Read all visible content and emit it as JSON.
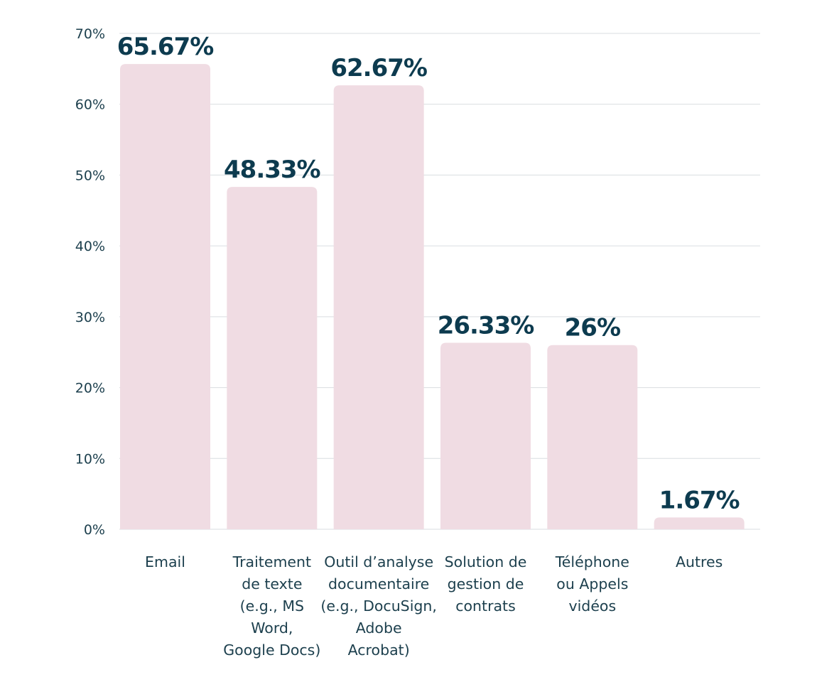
{
  "chart_data": {
    "type": "bar",
    "title": "",
    "xlabel": "",
    "ylabel": "",
    "ylim": [
      0,
      70
    ],
    "yticks": [
      0,
      10,
      20,
      30,
      40,
      50,
      60,
      70
    ],
    "ytick_labels": [
      "0%",
      "10%",
      "20%",
      "30%",
      "40%",
      "50%",
      "60%",
      "70%"
    ],
    "grid": true,
    "legend": "none",
    "categories": [
      "Email",
      "Traitement de texte (e.g., MS Word, Google Docs)",
      "Outil d’analyse documentaire (e.g., DocuSign, Adobe Acrobat)",
      "Solution de gestion de contrats",
      "Téléphone ou Appels vidéos",
      "Autres"
    ],
    "category_lines": [
      [
        "Email"
      ],
      [
        "Traitement",
        "de texte",
        "(e.g., MS",
        "Word,",
        "Google Docs)"
      ],
      [
        "Outil d’analyse",
        "documentaire",
        "(e.g., DocuSign,",
        "Adobe",
        "Acrobat)"
      ],
      [
        "Solution de",
        "gestion de",
        "contrats"
      ],
      [
        "Téléphone",
        "ou Appels",
        "vidéos"
      ],
      [
        "Autres"
      ]
    ],
    "values": [
      65.67,
      48.33,
      62.67,
      26.33,
      26,
      1.67
    ],
    "data_labels": [
      "65.67%",
      "48.33%",
      "62.67%",
      "26.33%",
      "26%",
      "1.67%"
    ],
    "colors": {
      "bar": "#f0dce3",
      "grid": "#d9dde0",
      "axis_text": "#1c3f4d",
      "label_text": "#0d3b4f"
    }
  }
}
